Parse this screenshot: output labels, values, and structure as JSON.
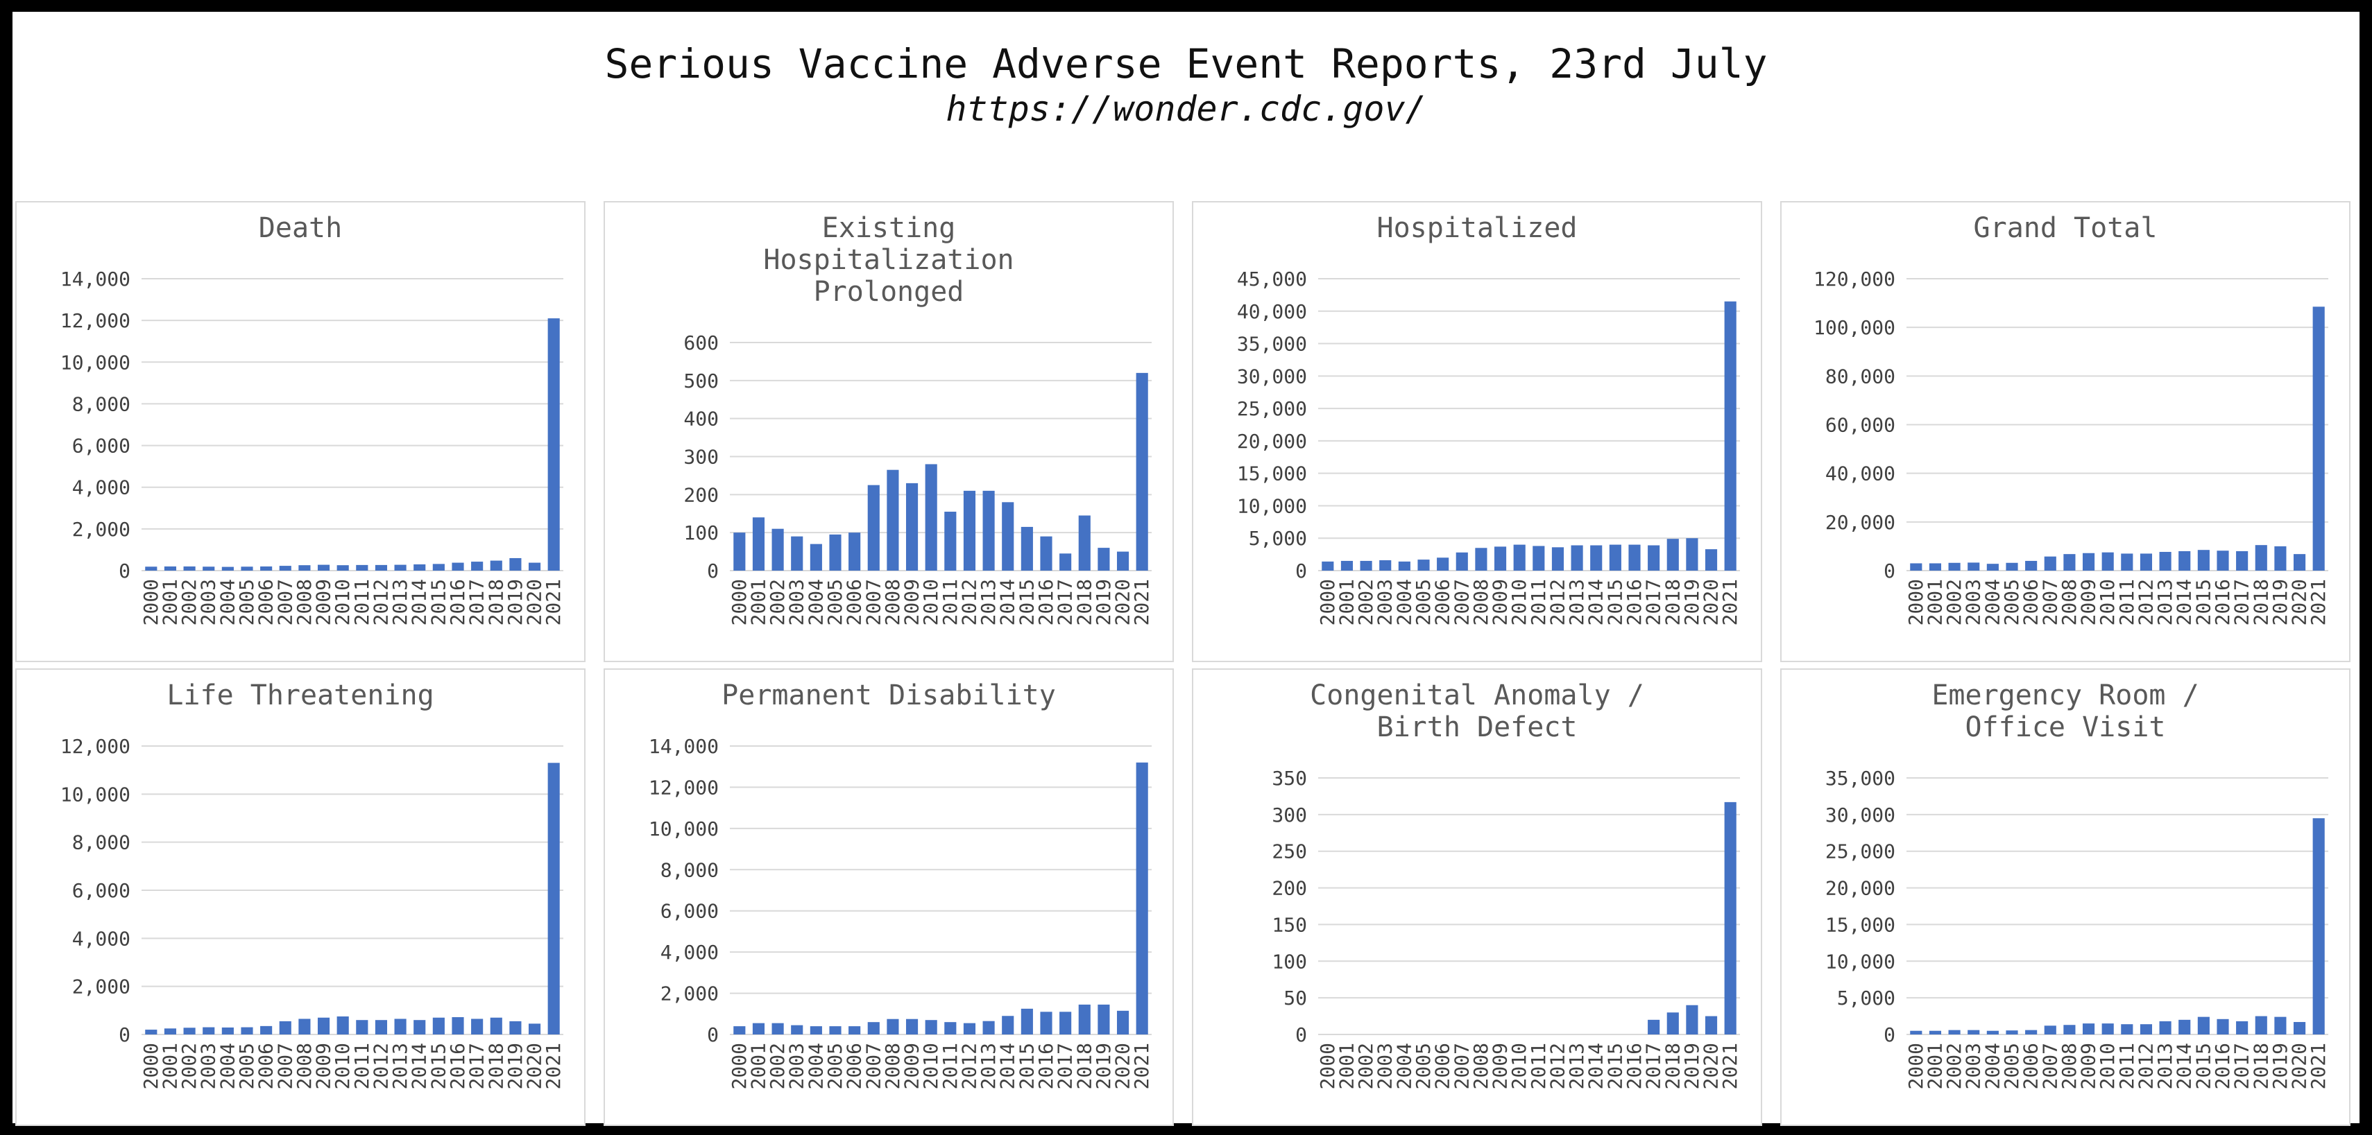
{
  "header": {
    "title": "Serious Vaccine Adverse Event Reports, 23rd July",
    "subtitle": "https://wonder.cdc.gov/"
  },
  "colors": {
    "bar": "#4472c4",
    "grid": "#d9d9d9",
    "background": "#ffffff",
    "frame": "#000000"
  },
  "chart_data": [
    {
      "type": "bar",
      "title": "Death",
      "categories": [
        "2000",
        "2001",
        "2002",
        "2003",
        "2004",
        "2005",
        "2006",
        "2007",
        "2008",
        "2009",
        "2010",
        "2011",
        "2012",
        "2013",
        "2014",
        "2015",
        "2016",
        "2017",
        "2018",
        "2019",
        "2020",
        "2021"
      ],
      "yticks": [
        "0",
        "2,000",
        "4,000",
        "6,000",
        "8,000",
        "10,000",
        "12,000",
        "14,000"
      ],
      "ylim": [
        0,
        14000
      ],
      "values": [
        190,
        200,
        200,
        190,
        180,
        190,
        200,
        230,
        260,
        280,
        260,
        270,
        270,
        280,
        300,
        320,
        380,
        430,
        480,
        600,
        380,
        12100
      ],
      "grid": true
    },
    {
      "type": "bar",
      "title": "Existing Hospitalization Prolonged",
      "categories": [
        "2000",
        "2001",
        "2002",
        "2003",
        "2004",
        "2005",
        "2006",
        "2007",
        "2008",
        "2009",
        "2010",
        "2011",
        "2012",
        "2013",
        "2014",
        "2015",
        "2016",
        "2017",
        "2018",
        "2019",
        "2020",
        "2021"
      ],
      "yticks": [
        "0",
        "100",
        "200",
        "300",
        "400",
        "500",
        "600"
      ],
      "ylim": [
        0,
        600
      ],
      "values": [
        100,
        140,
        110,
        90,
        70,
        95,
        100,
        225,
        265,
        230,
        280,
        155,
        210,
        210,
        180,
        115,
        90,
        45,
        145,
        60,
        50,
        520
      ],
      "grid": true
    },
    {
      "type": "bar",
      "title": "Hospitalized",
      "categories": [
        "2000",
        "2001",
        "2002",
        "2003",
        "2004",
        "2005",
        "2006",
        "2007",
        "2008",
        "2009",
        "2010",
        "2011",
        "2012",
        "2013",
        "2014",
        "2015",
        "2016",
        "2017",
        "2018",
        "2019",
        "2020",
        "2021"
      ],
      "yticks": [
        "0",
        "5,000",
        "10,000",
        "15,000",
        "20,000",
        "25,000",
        "30,000",
        "35,000",
        "40,000",
        "45,000"
      ],
      "ylim": [
        0,
        45000
      ],
      "values": [
        1400,
        1500,
        1500,
        1600,
        1400,
        1700,
        2000,
        2800,
        3500,
        3700,
        4000,
        3800,
        3600,
        3900,
        3900,
        4000,
        4000,
        3900,
        4900,
        5000,
        3300,
        41500
      ],
      "grid": true
    },
    {
      "type": "bar",
      "title": "Grand Total",
      "categories": [
        "2000",
        "2001",
        "2002",
        "2003",
        "2004",
        "2005",
        "2006",
        "2007",
        "2008",
        "2009",
        "2010",
        "2011",
        "2012",
        "2013",
        "2014",
        "2015",
        "2016",
        "2017",
        "2018",
        "2019",
        "2020",
        "2021"
      ],
      "yticks": [
        "0",
        "20,000",
        "40,000",
        "60,000",
        "80,000",
        "100,000",
        "120,000"
      ],
      "ylim": [
        0,
        120000
      ],
      "values": [
        3000,
        3000,
        3200,
        3300,
        2800,
        3200,
        4000,
        5800,
        6800,
        7200,
        7500,
        7000,
        7000,
        7700,
        8000,
        8500,
        8200,
        8000,
        10500,
        10000,
        6800,
        108500
      ],
      "grid": true
    },
    {
      "type": "bar",
      "title": "Life Threatening",
      "categories": [
        "2000",
        "2001",
        "2002",
        "2003",
        "2004",
        "2005",
        "2006",
        "2007",
        "2008",
        "2009",
        "2010",
        "2011",
        "2012",
        "2013",
        "2014",
        "2015",
        "2016",
        "2017",
        "2018",
        "2019",
        "2020",
        "2021"
      ],
      "yticks": [
        "0",
        "2,000",
        "4,000",
        "6,000",
        "8,000",
        "10,000",
        "12,000"
      ],
      "ylim": [
        0,
        12000
      ],
      "values": [
        200,
        250,
        280,
        300,
        290,
        300,
        350,
        550,
        650,
        700,
        750,
        600,
        600,
        650,
        600,
        700,
        720,
        650,
        700,
        550,
        450,
        11300
      ],
      "grid": true
    },
    {
      "type": "bar",
      "title": "Permanent Disability",
      "categories": [
        "2000",
        "2001",
        "2002",
        "2003",
        "2004",
        "2005",
        "2006",
        "2007",
        "2008",
        "2009",
        "2010",
        "2011",
        "2012",
        "2013",
        "2014",
        "2015",
        "2016",
        "2017",
        "2018",
        "2019",
        "2020",
        "2021"
      ],
      "yticks": [
        "0",
        "2,000",
        "4,000",
        "6,000",
        "8,000",
        "10,000",
        "12,000",
        "14,000"
      ],
      "ylim": [
        0,
        14000
      ],
      "values": [
        400,
        550,
        550,
        450,
        400,
        400,
        400,
        600,
        750,
        750,
        700,
        600,
        550,
        650,
        900,
        1250,
        1100,
        1100,
        1450,
        1450,
        1150,
        13200
      ],
      "grid": true
    },
    {
      "type": "bar",
      "title": "Congenital Anomaly / Birth Defect",
      "categories": [
        "2000",
        "2001",
        "2002",
        "2003",
        "2004",
        "2005",
        "2006",
        "2007",
        "2008",
        "2009",
        "2010",
        "2011",
        "2012",
        "2013",
        "2014",
        "2015",
        "2016",
        "2017",
        "2018",
        "2019",
        "2020",
        "2021"
      ],
      "yticks": [
        "0",
        "50",
        "100",
        "150",
        "200",
        "250",
        "300",
        "350"
      ],
      "ylim": [
        0,
        350
      ],
      "values": [
        0,
        0,
        0,
        0,
        0,
        0,
        0,
        0,
        0,
        0,
        0,
        0,
        0,
        0,
        0,
        0,
        0,
        20,
        30,
        40,
        25,
        317
      ],
      "grid": true
    },
    {
      "type": "bar",
      "title": "Emergency Room / Office Visit",
      "categories": [
        "2000",
        "2001",
        "2002",
        "2003",
        "2004",
        "2005",
        "2006",
        "2007",
        "2008",
        "2009",
        "2010",
        "2011",
        "2012",
        "2013",
        "2014",
        "2015",
        "2016",
        "2017",
        "2018",
        "2019",
        "2020",
        "2021"
      ],
      "yticks": [
        "0",
        "5,000",
        "10,000",
        "15,000",
        "20,000",
        "25,000",
        "30,000",
        "35,000"
      ],
      "ylim": [
        0,
        35000
      ],
      "values": [
        500,
        500,
        600,
        600,
        500,
        550,
        600,
        1200,
        1300,
        1500,
        1500,
        1400,
        1400,
        1800,
        2000,
        2400,
        2100,
        1800,
        2500,
        2400,
        1700,
        29500
      ],
      "grid": true
    }
  ]
}
